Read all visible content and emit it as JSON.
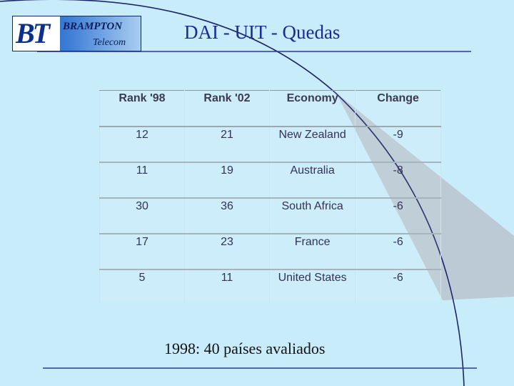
{
  "header": {
    "logo_mark": "BT",
    "logo_name": "BRAMPTON",
    "logo_sub": "Telecom",
    "title": "DAI  - UIT - Quedas"
  },
  "table": {
    "headers": [
      "Rank '98",
      "Rank '02",
      "Economy",
      "Change"
    ],
    "rows": [
      [
        "12",
        "21",
        "New Zealand",
        "-9"
      ],
      [
        "11",
        "19",
        "Australia",
        "-8"
      ],
      [
        "30",
        "36",
        "South Africa",
        "-6"
      ],
      [
        "17",
        "23",
        "France",
        "-6"
      ],
      [
        "5",
        "11",
        "United States",
        "-6"
      ]
    ]
  },
  "footnote": "1998: 40 países avaliados",
  "colors": {
    "background": "#c9ecfb",
    "title": "#1a2a9a",
    "rule": "#2a3a9a"
  }
}
